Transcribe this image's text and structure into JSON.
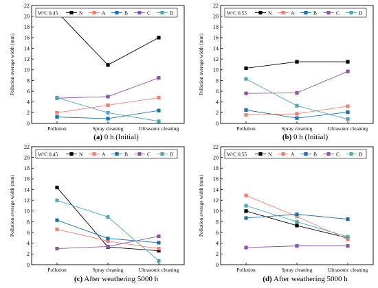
{
  "chart_data": [
    {
      "type": "line",
      "caption_letter": "(a)",
      "caption_text": " 0 h (Initial)",
      "legend_title": "W/C 0.45",
      "categories": [
        "Pollution",
        "Spray cleaning",
        "Ultrasonic cleaning"
      ],
      "ylabel": "Pollution average width (mm)",
      "ylim": [
        0,
        22
      ],
      "yticks": [
        0,
        2,
        4,
        6,
        8,
        10,
        12,
        14,
        16,
        18,
        20,
        22
      ],
      "series": [
        {
          "name": "N",
          "color": "#000000",
          "values": [
            20.8,
            10.9,
            16.0
          ]
        },
        {
          "name": "A",
          "color": "#f08070",
          "values": [
            2.0,
            3.4,
            4.8
          ]
        },
        {
          "name": "B",
          "color": "#1a6fb0",
          "values": [
            1.2,
            0.9,
            2.4
          ]
        },
        {
          "name": "C",
          "color": "#8a55a8",
          "values": [
            4.7,
            5.0,
            8.5
          ]
        },
        {
          "name": "D",
          "color": "#4fa6b4",
          "values": [
            4.8,
            2.0,
            0.4
          ]
        }
      ]
    },
    {
      "type": "line",
      "caption_letter": "(b)",
      "caption_text": " 0 h (Initial)",
      "legend_title": "W/C 0.55",
      "categories": [
        "Pollution",
        "Spray cleaning",
        "Ultrasonic cleaning"
      ],
      "ylabel": "Pollution average width (mm)",
      "ylim": [
        0,
        22
      ],
      "yticks": [
        0,
        2,
        4,
        6,
        8,
        10,
        12,
        14,
        16,
        18,
        20,
        22
      ],
      "series": [
        {
          "name": "N",
          "color": "#000000",
          "values": [
            10.3,
            11.5,
            11.5
          ]
        },
        {
          "name": "A",
          "color": "#f08070",
          "values": [
            1.6,
            1.8,
            3.2
          ]
        },
        {
          "name": "B",
          "color": "#1a6fb0",
          "values": [
            2.5,
            1.0,
            2.1
          ]
        },
        {
          "name": "C",
          "color": "#8a55a8",
          "values": [
            5.6,
            5.7,
            9.7
          ]
        },
        {
          "name": "D",
          "color": "#4fa6b4",
          "values": [
            8.3,
            3.3,
            0.8
          ]
        }
      ]
    },
    {
      "type": "line",
      "caption_letter": "(c)",
      "caption_text": " After weathering 5000 h",
      "legend_title": "W/C 0.45",
      "categories": [
        "Pollution",
        "Spray cleaning",
        "Ultrasonic cleaning"
      ],
      "ylabel": "Pollution average width (mm)",
      "ylim": [
        0,
        22
      ],
      "yticks": [
        0,
        2,
        4,
        6,
        8,
        10,
        12,
        14,
        16,
        18,
        20,
        22
      ],
      "series": [
        {
          "name": "N",
          "color": "#000000",
          "values": [
            14.4,
            3.3,
            2.6
          ]
        },
        {
          "name": "A",
          "color": "#f08070",
          "values": [
            6.6,
            4.4,
            3.0
          ]
        },
        {
          "name": "B",
          "color": "#1a6fb0",
          "values": [
            8.3,
            4.9,
            4.1
          ]
        },
        {
          "name": "C",
          "color": "#8a55a8",
          "values": [
            3.0,
            3.4,
            5.3
          ]
        },
        {
          "name": "D",
          "color": "#4fa6b4",
          "values": [
            12.0,
            8.9,
            0.7
          ]
        }
      ]
    },
    {
      "type": "line",
      "caption_letter": "(d)",
      "caption_text": " After weathering 5000 h",
      "legend_title": "W/C 0.55",
      "categories": [
        "Pollution",
        "Spray cleaning",
        "Ultrasonic cleaning"
      ],
      "ylabel": "Pollution average width (mm)",
      "ylim": [
        0,
        22
      ],
      "yticks": [
        0,
        2,
        4,
        6,
        8,
        10,
        12,
        14,
        16,
        18,
        20,
        22
      ],
      "series": [
        {
          "name": "N",
          "color": "#000000",
          "values": [
            10.0,
            7.3,
            5.0
          ]
        },
        {
          "name": "A",
          "color": "#f08070",
          "values": [
            12.9,
            9.0,
            4.7
          ]
        },
        {
          "name": "B",
          "color": "#1a6fb0",
          "values": [
            8.7,
            9.4,
            8.5
          ]
        },
        {
          "name": "C",
          "color": "#8a55a8",
          "values": [
            3.2,
            3.5,
            3.5
          ]
        },
        {
          "name": "D",
          "color": "#4fa6b4",
          "values": [
            11.0,
            8.0,
            5.2
          ]
        }
      ]
    }
  ]
}
